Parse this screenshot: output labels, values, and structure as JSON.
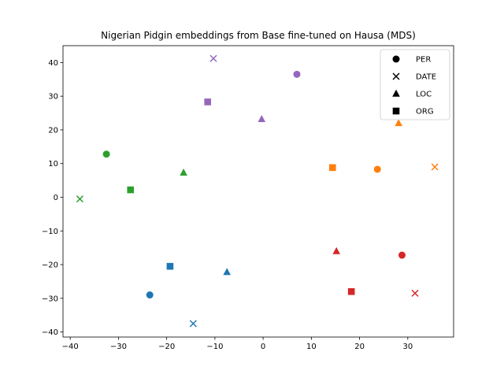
{
  "chart_data": {
    "type": "scatter",
    "title": "Nigerian Pidgin embeddings from Base fine-tuned on Hausa (MDS)",
    "xlabel": "",
    "ylabel": "",
    "xlim": [
      -41.5,
      39.5
    ],
    "ylim": [
      -41.5,
      45
    ],
    "xticks": [
      -40,
      -30,
      -20,
      -10,
      0,
      10,
      20,
      30
    ],
    "yticks": [
      -40,
      -30,
      -20,
      -10,
      0,
      10,
      20,
      30,
      40
    ],
    "grid": false,
    "legend_position": "top-right",
    "legend": [
      {
        "label": "PER",
        "marker": "circle"
      },
      {
        "label": "DATE",
        "marker": "x"
      },
      {
        "label": "LOC",
        "marker": "triangle"
      },
      {
        "label": "ORG",
        "marker": "square"
      }
    ],
    "colors": {
      "blue": "#1f77b4",
      "orange": "#ff7f0e",
      "green": "#2ca02c",
      "red": "#d62728",
      "purple": "#9467bd"
    },
    "points": [
      {
        "x": -23.5,
        "y": -29,
        "marker": "circle",
        "color": "blue"
      },
      {
        "x": -14.5,
        "y": -37.5,
        "marker": "x",
        "color": "blue"
      },
      {
        "x": -7.5,
        "y": -22.2,
        "marker": "triangle",
        "color": "blue"
      },
      {
        "x": -19.3,
        "y": -20.5,
        "marker": "square",
        "color": "blue"
      },
      {
        "x": 23.7,
        "y": 8.3,
        "marker": "circle",
        "color": "orange"
      },
      {
        "x": 35.6,
        "y": 9.0,
        "marker": "x",
        "color": "orange"
      },
      {
        "x": 28.1,
        "y": 22.0,
        "marker": "triangle",
        "color": "orange"
      },
      {
        "x": 14.4,
        "y": 8.8,
        "marker": "square",
        "color": "orange"
      },
      {
        "x": -32.5,
        "y": 12.8,
        "marker": "circle",
        "color": "green"
      },
      {
        "x": -38.0,
        "y": -0.5,
        "marker": "x",
        "color": "green"
      },
      {
        "x": -16.5,
        "y": 7.3,
        "marker": "triangle",
        "color": "green"
      },
      {
        "x": -27.5,
        "y": 2.2,
        "marker": "square",
        "color": "green"
      },
      {
        "x": 28.8,
        "y": -17.2,
        "marker": "circle",
        "color": "red"
      },
      {
        "x": 31.5,
        "y": -28.5,
        "marker": "x",
        "color": "red"
      },
      {
        "x": 15.2,
        "y": -16.0,
        "marker": "triangle",
        "color": "red"
      },
      {
        "x": 18.3,
        "y": -28.0,
        "marker": "square",
        "color": "red"
      },
      {
        "x": 7.0,
        "y": 36.5,
        "marker": "circle",
        "color": "purple"
      },
      {
        "x": -10.3,
        "y": 41.2,
        "marker": "x",
        "color": "purple"
      },
      {
        "x": -0.3,
        "y": 23.2,
        "marker": "triangle",
        "color": "purple"
      },
      {
        "x": -11.5,
        "y": 28.3,
        "marker": "square",
        "color": "purple"
      }
    ]
  }
}
